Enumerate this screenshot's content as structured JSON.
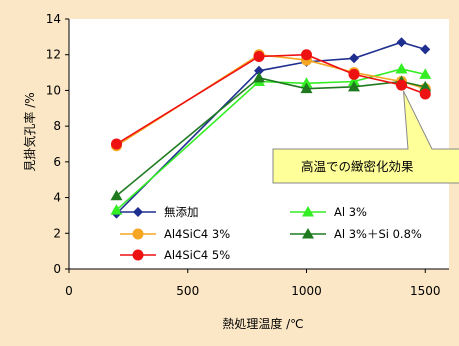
{
  "chart_data": {
    "type": "line",
    "xlabel": "熱処理温度 /℃",
    "ylabel": "見掛気孔率 /%",
    "xlim": [
      0,
      1600
    ],
    "ylim": [
      0,
      14
    ],
    "xticks": [
      0,
      500,
      1000,
      1500
    ],
    "yticks": [
      0,
      2,
      4,
      6,
      8,
      10,
      12,
      14
    ],
    "grid": false,
    "legend_position": "bottom-left inside",
    "series": [
      {
        "name": "無添加",
        "color": "#1f2f8f",
        "marker": "diamond",
        "x": [
          200,
          800,
          1000,
          1200,
          1400,
          1500
        ],
        "y": [
          3.1,
          11.1,
          11.6,
          11.8,
          12.7,
          12.3
        ]
      },
      {
        "name": "Al 3%",
        "color": "#33ee22",
        "marker": "triangle",
        "x": [
          200,
          800,
          1000,
          1200,
          1400,
          1500
        ],
        "y": [
          3.3,
          10.5,
          10.4,
          10.5,
          11.2,
          10.9
        ]
      },
      {
        "name": "Al4SiC4 3%",
        "color": "#f5a623",
        "marker": "circle",
        "x": [
          200,
          800,
          1000,
          1200,
          1400,
          1500
        ],
        "y": [
          6.9,
          12.0,
          11.7,
          11.0,
          10.5,
          10.1
        ]
      },
      {
        "name": "Al 3%＋Si 0.8%",
        "color": "#1f7a1f",
        "marker": "triangle",
        "x": [
          200,
          800,
          1000,
          1200,
          1400,
          1500
        ],
        "y": [
          4.1,
          10.7,
          10.1,
          10.2,
          10.5,
          10.2
        ]
      },
      {
        "name": "Al4SiC4 5%",
        "color": "#ee1111",
        "marker": "circle",
        "x": [
          200,
          800,
          1000,
          1200,
          1400,
          1500
        ],
        "y": [
          7.0,
          11.9,
          12.0,
          10.9,
          10.3,
          9.8
        ]
      }
    ],
    "annotation": {
      "text": "高温での緻密化効果",
      "background": "#ffff99",
      "border": "#888888",
      "pointer_target": {
        "x": 1400,
        "y": 10.3
      }
    }
  }
}
